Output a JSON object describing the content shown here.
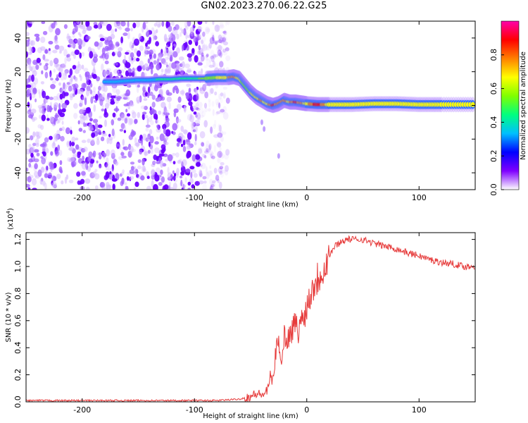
{
  "figure": {
    "title": "GN02.2023.270.06.22.G25"
  },
  "chart_data": [
    {
      "type": "heatmap",
      "xlabel": "Height of straight line (km)",
      "ylabel": "Frequency (Hz)",
      "xlim": [
        -250,
        150
      ],
      "ylim": [
        -50,
        50
      ],
      "xticks": [
        -200,
        -100,
        0,
        100
      ],
      "yticks": [
        -40,
        -20,
        0,
        20,
        40
      ],
      "colorbar": {
        "label": "Normalized spectral amplitude",
        "range": [
          0.0,
          1.0
        ],
        "ticks": [
          "0.0",
          "0.2",
          "0.4",
          "0.6",
          "0.8"
        ],
        "colors": [
          "#ffffff",
          "#7f00ff",
          "#0000ff",
          "#00bfff",
          "#00ff80",
          "#80ff00",
          "#ffff00",
          "#ff8000",
          "#ff0000",
          "#ff00aa"
        ]
      },
      "noise_region_x": [
        -250,
        -80
      ],
      "ridge": {
        "x": [
          -180,
          -170,
          -160,
          -150,
          -140,
          -130,
          -120,
          -110,
          -100,
          -90,
          -80,
          -70,
          -65,
          -60,
          -55,
          -50,
          -45,
          -40,
          -35,
          -30,
          -25,
          -20,
          -15,
          -10,
          -5,
          0,
          10,
          20,
          40,
          60,
          80,
          100,
          120,
          150
        ],
        "y": [
          14,
          14,
          14.5,
          15,
          15,
          15.5,
          15.5,
          16,
          16,
          16,
          16.5,
          16.5,
          17,
          16,
          12,
          8,
          5,
          3,
          1,
          0,
          1,
          3,
          2,
          2,
          1.5,
          1,
          0.5,
          0.5,
          0.5,
          1,
          1,
          0.5,
          0.5,
          0.5
        ],
        "amplitude": [
          0.3,
          0.3,
          0.3,
          0.3,
          0.3,
          0.35,
          0.35,
          0.35,
          0.4,
          0.5,
          0.55,
          0.65,
          0.75,
          0.6,
          0.5,
          0.55,
          0.6,
          0.7,
          0.6,
          0.8,
          0.75,
          0.7,
          0.65,
          0.8,
          0.75,
          0.6,
          0.85,
          0.6,
          0.6,
          0.65,
          0.6,
          0.6,
          0.6,
          0.6
        ]
      }
    },
    {
      "type": "line",
      "xlabel": "Height of straight line (km)",
      "ylabel": "SNR (10 * v/v)",
      "yscale_label": "(x10",
      "yscale_exp": "4",
      "yscale_close": ")",
      "xlim": [
        -250,
        150
      ],
      "ylim": [
        0.0,
        1.25
      ],
      "xticks": [
        -200,
        -100,
        0,
        100
      ],
      "yticks": [
        "0.0",
        "0.2",
        "0.4",
        "0.6",
        "0.8",
        "1.0",
        "1.2"
      ],
      "ytick_values": [
        0.0,
        0.2,
        0.4,
        0.6,
        0.8,
        1.0,
        1.2
      ],
      "color": "#e63a3a",
      "series": [
        {
          "x": [
            -250,
            -200,
            -150,
            -100,
            -80,
            -60,
            -50,
            -45,
            -40,
            -35,
            -32,
            -30,
            -28,
            -25,
            -22,
            -20,
            -18,
            -15,
            -12,
            -10,
            -8,
            -5,
            -2,
            0,
            5,
            10,
            15,
            20,
            25,
            30,
            35,
            40,
            50,
            60,
            70,
            80,
            90,
            100,
            110,
            120,
            130,
            140,
            150
          ],
          "y": [
            0.01,
            0.01,
            0.01,
            0.01,
            0.01,
            0.02,
            0.04,
            0.06,
            0.05,
            0.08,
            0.2,
            0.15,
            0.35,
            0.45,
            0.3,
            0.5,
            0.45,
            0.5,
            0.55,
            0.6,
            0.5,
            0.6,
            0.65,
            0.7,
            0.85,
            0.92,
            1.0,
            1.08,
            1.15,
            1.18,
            1.2,
            1.2,
            1.2,
            1.17,
            1.15,
            1.13,
            1.1,
            1.08,
            1.05,
            1.03,
            1.02,
            1.0,
            1.0
          ]
        }
      ]
    }
  ]
}
